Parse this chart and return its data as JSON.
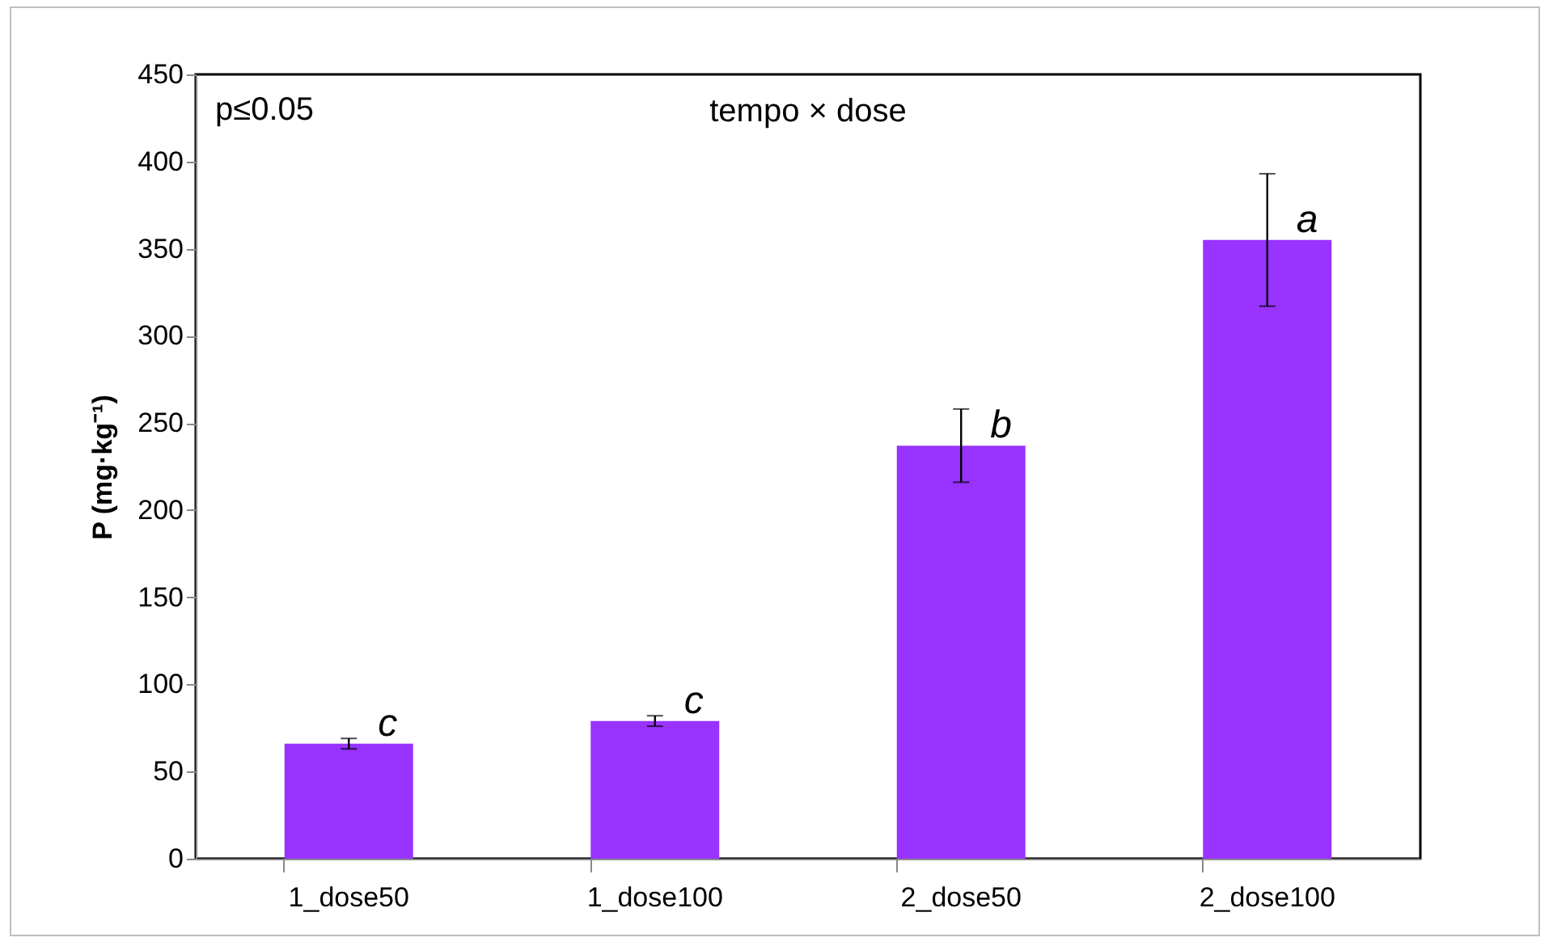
{
  "chart_data": {
    "type": "bar",
    "title": "tempo × dose",
    "ylabel": "P (mg·kg⁻¹)",
    "categories": [
      "1_dose50",
      "1_dose100",
      "2_dose50",
      "2_dose100"
    ],
    "values": [
      66,
      79,
      237,
      355
    ],
    "errors": [
      3,
      3,
      21,
      38
    ],
    "color": "#9933ff",
    "ylim": [
      0,
      450
    ],
    "yticks": [
      0,
      50,
      100,
      150,
      200,
      250,
      300,
      350,
      400,
      450
    ],
    "annotations": [
      "p≤0.05",
      {
        "text": "c",
        "x": "1_dose50",
        "y": 66
      },
      {
        "text": "c",
        "x": "1_dose100",
        "y": 79
      },
      {
        "text": "b",
        "x": "2_dose50",
        "y": 237
      },
      {
        "text": "a",
        "x": "2_dose100",
        "y": 355
      }
    ]
  }
}
